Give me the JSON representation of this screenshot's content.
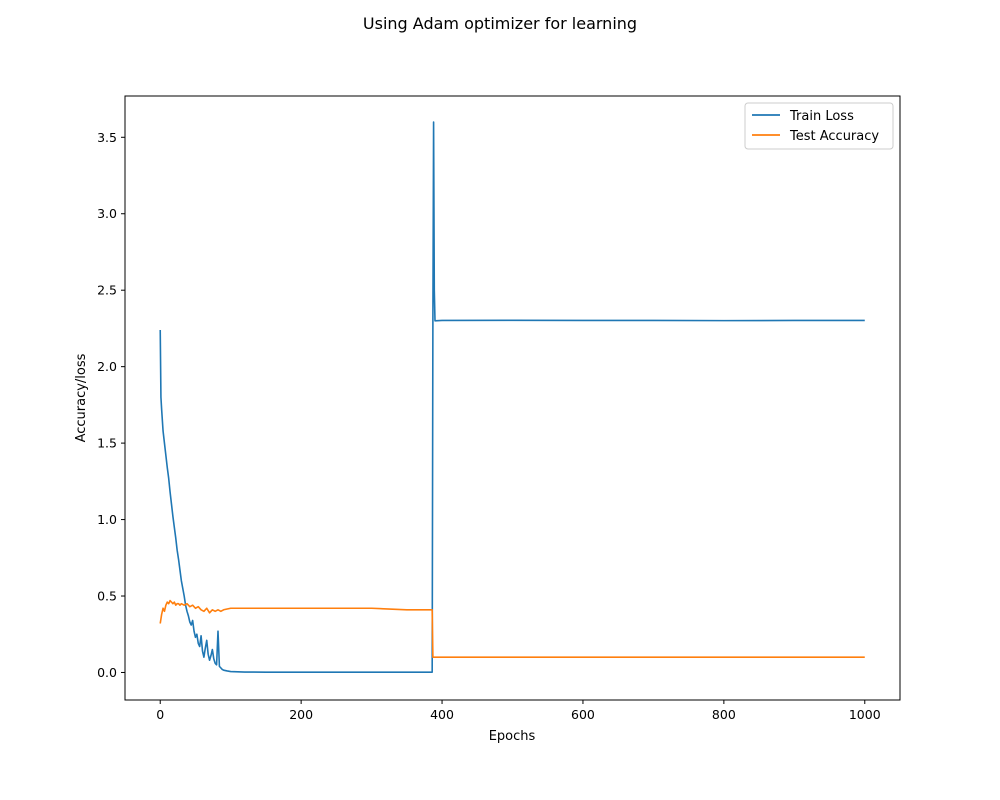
{
  "chart_data": {
    "type": "line",
    "title": "Using Adam optimizer for learning",
    "xlabel": "Epochs",
    "ylabel": "Accuracy/loss",
    "xlim": [
      -50,
      1050
    ],
    "ylim": [
      -0.18,
      3.77
    ],
    "xticks": [
      0,
      200,
      400,
      600,
      800,
      1000
    ],
    "yticks": [
      0.0,
      0.5,
      1.0,
      1.5,
      2.0,
      2.5,
      3.0,
      3.5
    ],
    "grid": false,
    "legend_position": "top-right",
    "series": [
      {
        "name": "Train Loss",
        "color": "#1f77b4",
        "x": [
          0,
          1,
          2,
          4,
          6,
          8,
          10,
          12,
          14,
          16,
          18,
          20,
          22,
          24,
          26,
          28,
          30,
          32,
          34,
          36,
          38,
          40,
          42,
          44,
          46,
          48,
          50,
          52,
          54,
          56,
          58,
          60,
          62,
          64,
          66,
          68,
          70,
          72,
          74,
          76,
          78,
          80,
          82,
          84,
          86,
          88,
          90,
          95,
          100,
          110,
          120,
          150,
          200,
          300,
          385,
          386,
          387,
          388,
          389,
          390,
          400,
          500,
          600,
          700,
          800,
          900,
          1000
        ],
        "y": [
          2.24,
          1.8,
          1.72,
          1.58,
          1.5,
          1.42,
          1.34,
          1.27,
          1.18,
          1.1,
          1.02,
          0.95,
          0.88,
          0.8,
          0.74,
          0.67,
          0.6,
          0.55,
          0.5,
          0.44,
          0.4,
          0.37,
          0.33,
          0.31,
          0.34,
          0.27,
          0.23,
          0.25,
          0.19,
          0.17,
          0.24,
          0.14,
          0.1,
          0.16,
          0.21,
          0.12,
          0.08,
          0.11,
          0.15,
          0.09,
          0.06,
          0.05,
          0.27,
          0.04,
          0.03,
          0.02,
          0.015,
          0.01,
          0.006,
          0.004,
          0.003,
          0.002,
          0.002,
          0.002,
          0.002,
          0.002,
          2.3,
          3.6,
          2.5,
          2.3,
          2.302,
          2.303,
          2.302,
          2.302,
          2.301,
          2.302,
          2.302
        ]
      },
      {
        "name": "Test Accuracy",
        "color": "#ff7f0e",
        "x": [
          0,
          2,
          4,
          6,
          8,
          10,
          12,
          14,
          16,
          18,
          20,
          22,
          24,
          26,
          28,
          30,
          34,
          38,
          42,
          46,
          50,
          54,
          58,
          62,
          66,
          70,
          74,
          78,
          82,
          86,
          90,
          100,
          120,
          150,
          200,
          250,
          300,
          350,
          385,
          386,
          387,
          400,
          500,
          600,
          700,
          800,
          900,
          1000
        ],
        "y": [
          0.32,
          0.38,
          0.42,
          0.4,
          0.44,
          0.46,
          0.45,
          0.47,
          0.46,
          0.45,
          0.46,
          0.44,
          0.45,
          0.45,
          0.44,
          0.45,
          0.44,
          0.45,
          0.43,
          0.44,
          0.42,
          0.43,
          0.41,
          0.4,
          0.42,
          0.39,
          0.41,
          0.4,
          0.41,
          0.4,
          0.41,
          0.42,
          0.42,
          0.42,
          0.42,
          0.42,
          0.42,
          0.41,
          0.41,
          0.41,
          0.1,
          0.1,
          0.1,
          0.1,
          0.1,
          0.1,
          0.1,
          0.1
        ]
      }
    ]
  }
}
